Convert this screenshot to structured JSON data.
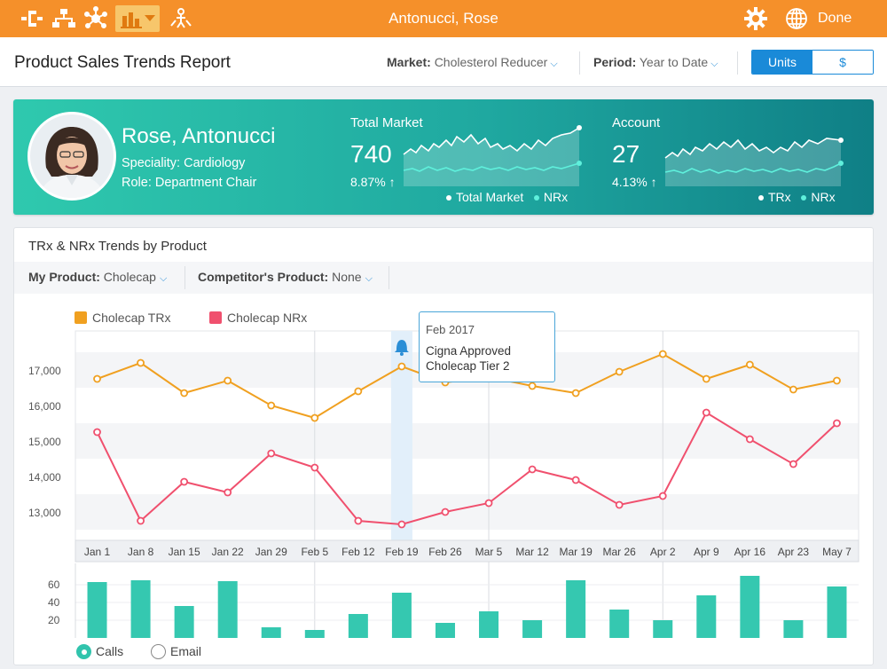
{
  "topbar": {
    "title": "Antonucci, Rose",
    "done_label": "Done",
    "tool_icons": [
      "flow-icon",
      "org-chart-icon",
      "network-icon",
      "bar-chart-icon",
      "map-person-icon"
    ],
    "right_icons": [
      "gear-icon",
      "globe-icon"
    ],
    "bg_color": "#f5902a"
  },
  "report": {
    "title": "Product Sales Trends Report",
    "market_label": "Market:",
    "market_value": "Cholesterol Reducer",
    "period_label": "Period:",
    "period_value": "Year to Date",
    "toggle": [
      "Units",
      "$"
    ],
    "toggle_selected": "Units"
  },
  "profile": {
    "name": "Rose, Antonucci",
    "speciality": "Speciality: Cardiology",
    "role": "Role: Department Chair"
  },
  "metrics": {
    "total_market": {
      "label": "Total Market",
      "value": "740",
      "change": "8.87%",
      "legend": [
        "Total Market",
        "NRx"
      ]
    },
    "account": {
      "label": "Account",
      "value": "27",
      "change": "4.13%",
      "legend": [
        "TRx",
        "NRx"
      ]
    }
  },
  "trends": {
    "title": "TRx & NRx Trends by Product",
    "my_product_label": "My Product:",
    "my_product_value": "Cholecap",
    "competitor_label": "Competitor's Product:",
    "competitor_value": "None",
    "tooltip": {
      "date": "Feb 2017",
      "line1": "Cigna Approved",
      "line2": "Cholecap Tier 2"
    },
    "radio": {
      "options": [
        "Calls",
        "Email"
      ],
      "selected": "Calls"
    }
  },
  "chart_data": {
    "type": "line",
    "categories": [
      "Jan 1",
      "Jan 8",
      "Jan 15",
      "Jan 22",
      "Jan 29",
      "Feb 5",
      "Feb 12",
      "Feb 19",
      "Feb 26",
      "Mar 5",
      "Mar 12",
      "Mar 19",
      "Mar 26",
      "Apr 2",
      "Apr 9",
      "Apr 16",
      "Apr 23",
      "May 7"
    ],
    "series": [
      {
        "name": "Cholecap TRx",
        "color": "#f0a020",
        "values": [
          16750,
          17200,
          16350,
          16700,
          16000,
          15650,
          16400,
          17100,
          16650,
          16800,
          16550,
          16350,
          16950,
          17450,
          16750,
          17150,
          16450,
          16700
        ]
      },
      {
        "name": "Cholecap NRx",
        "color": "#f0506e",
        "values": [
          15250,
          12750,
          13850,
          13550,
          14650,
          14250,
          12750,
          12650,
          13000,
          13250,
          14200,
          13900,
          13200,
          13450,
          15800,
          15050,
          14350,
          15500
        ]
      }
    ],
    "ylim": [
      12200,
      18100
    ],
    "yticks": [
      "13,000",
      "14,000",
      "15,000",
      "16,000",
      "17,000"
    ],
    "ytick_values": [
      13000,
      14000,
      15000,
      16000,
      17000
    ],
    "highlight_category": "Feb 19",
    "legend_placement": "top-left"
  },
  "bar_data": {
    "type": "bar",
    "values": [
      63,
      65,
      36,
      64,
      12,
      9,
      27,
      51,
      17,
      30,
      20,
      65,
      32,
      20,
      48,
      70,
      20,
      58
    ],
    "color": "#35c8b0",
    "ylim": [
      0,
      80
    ],
    "yticks": [
      "20",
      "40",
      "60"
    ],
    "ytick_values": [
      20,
      40,
      60
    ]
  }
}
